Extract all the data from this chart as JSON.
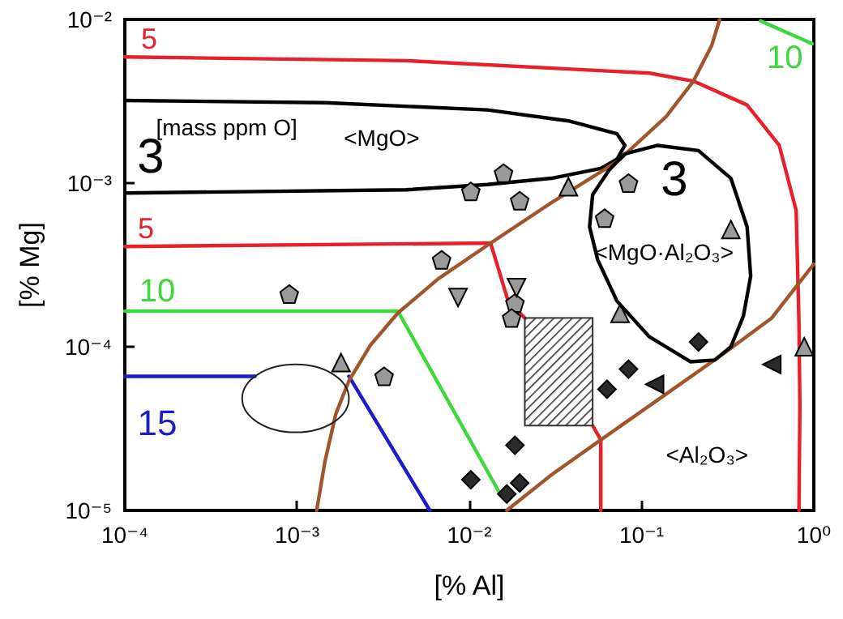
{
  "chart_data": {
    "type": "line",
    "xlabel": "[% Al]",
    "ylabel": "[% Mg]",
    "log": "xy",
    "grid": false,
    "legend": false,
    "xlim": [
      0.0001,
      1
    ],
    "ylim": [
      1e-05,
      0.01
    ],
    "xticks": [
      {
        "value": 0.0001,
        "label": "10⁻⁴"
      },
      {
        "value": 0.001,
        "label": "10⁻³"
      },
      {
        "value": 0.01,
        "label": "10⁻²"
      },
      {
        "value": 0.1,
        "label": "10⁻¹"
      },
      {
        "value": 1,
        "label": "10⁰"
      }
    ],
    "yticks": [
      {
        "value": 1e-05,
        "label": "10⁻⁵"
      },
      {
        "value": 0.0001,
        "label": "10⁻⁴"
      },
      {
        "value": 0.001,
        "label": "10⁻³"
      },
      {
        "value": 0.01,
        "label": "10⁻²"
      }
    ],
    "series": [
      {
        "name": "5",
        "color": "#e8202a",
        "x": [
          0.0001,
          0.0043,
          0.111,
          0.2,
          0.41,
          0.63,
          0.79,
          0.82,
          0.83,
          0.82
        ],
        "values": [
          0.0059,
          0.0056,
          0.0047,
          0.0042,
          0.003,
          0.0017,
          0.00068,
          0.00014,
          4.4e-05,
          1e-05
        ]
      },
      {
        "name": "5",
        "color": "#e8202a",
        "x": [
          0.0001,
          0.0133,
          0.0168,
          0.021,
          null,
          0.052,
          0.058,
          0.058
        ],
        "values": [
          0.00041,
          0.00043,
          0.00019,
          0.00015,
          null,
          3.3e-05,
          2.7e-05,
          1e-05
        ]
      },
      {
        "name": "3",
        "color": "#000000",
        "x": [
          0.0001,
          0.00145,
          0.0127,
          0.0376,
          0.072,
          0.08
        ],
        "values": [
          0.0032,
          0.0031,
          0.0028,
          0.0024,
          0.002,
          0.0017
        ]
      },
      {
        "color": "#000000",
        "x": [
          0.0001,
          0.0043,
          0.0127,
          0.03,
          0.058,
          0.072,
          0.08
        ],
        "values": [
          0.00087,
          0.00091,
          0.00098,
          0.00107,
          0.00123,
          0.0014,
          0.0017
        ]
      },
      {
        "name": "10",
        "color": "#3cd83c",
        "x": [
          0.0001,
          0.00385,
          0.0151
        ],
        "values": [
          0.000165,
          0.000165,
          1.26e-05
        ]
      },
      {
        "name": "10",
        "color": "#3cd83c",
        "x": [
          0.49,
          0.98
        ],
        "values": [
          0.0098,
          0.0071
        ]
      },
      {
        "name": "15",
        "color": "#1c1cc8",
        "x": [
          0.0001,
          0.00057,
          null,
          0.002,
          0.0059
        ],
        "values": [
          6.6e-05,
          6.6e-05,
          null,
          6.6e-05,
          1e-05
        ]
      },
      {
        "color": "#a0562c",
        "x": [
          0.0013,
          0.00145,
          0.00168,
          0.002,
          0.00266,
          0.00385,
          0.0066,
          0.0133,
          0.03,
          0.072,
          0.139,
          0.2,
          0.255,
          0.284
        ],
        "values": [
          1e-05,
          1.98e-05,
          3.9e-05,
          6.2e-05,
          0.000102,
          0.000161,
          0.00026,
          0.00043,
          0.00076,
          0.00135,
          0.00255,
          0.0042,
          0.0069,
          0.01
        ]
      },
      {
        "color": "#a0562c",
        "x": [
          0.0165,
          0.03,
          0.058,
          0.13,
          0.3,
          0.57,
          1
        ],
        "values": [
          1e-05,
          1.65e-05,
          2.7e-05,
          4.9e-05,
          9.1e-05,
          0.00015,
          0.00032
        ]
      },
      {
        "type": "scatter",
        "color": "#9a9a9a",
        "x": [
          0.0009,
          0.0032,
          0.0069,
          0.0102,
          0.0158,
          0.0196,
          0.0184,
          0.0176,
          0.061,
          0.084
        ],
        "values": [
          0.00021,
          6.6e-05,
          0.00034,
          0.00089,
          0.00115,
          0.00078,
          0.000185,
          0.00015,
          0.00061,
          0.001
        ]
      },
      {
        "type": "scatter",
        "marker": "triangle",
        "color": "#9a9a9a",
        "x": [
          0.0018,
          0.0376,
          0.075,
          0.33,
          0.88
        ],
        "values": [
          8e-05,
          0.00095,
          0.00016,
          0.00052,
          0.0001
        ]
      },
      {
        "type": "scatter",
        "marker": "triangle-down",
        "color": "#9a9a9a",
        "x": [
          0.0086,
          0.0188
        ],
        "values": [
          0.0002,
          0.00023
        ]
      },
      {
        "type": "scatter",
        "marker": "diamond",
        "color": "#2a2a2a",
        "x": [
          0.214,
          0.084,
          0.063,
          0.0184,
          0.0102,
          0.0196,
          0.0165
        ],
        "values": [
          0.000107,
          7.3e-05,
          5.5e-05,
          2.5e-05,
          1.54e-05,
          1.47e-05,
          1.26e-05
        ]
      },
      {
        "type": "scatter",
        "marker": "triangle-left",
        "color": "#2a2a2a",
        "x": [
          0.119,
          0.57
        ],
        "values": [
          5.9e-05,
          7.8e-05
        ]
      }
    ],
    "annotations": [
      "[mass ppm O]",
      "<MgO>",
      "<MgO·Al₂O₃>",
      "<Al₂O₃>",
      "3"
    ]
  }
}
